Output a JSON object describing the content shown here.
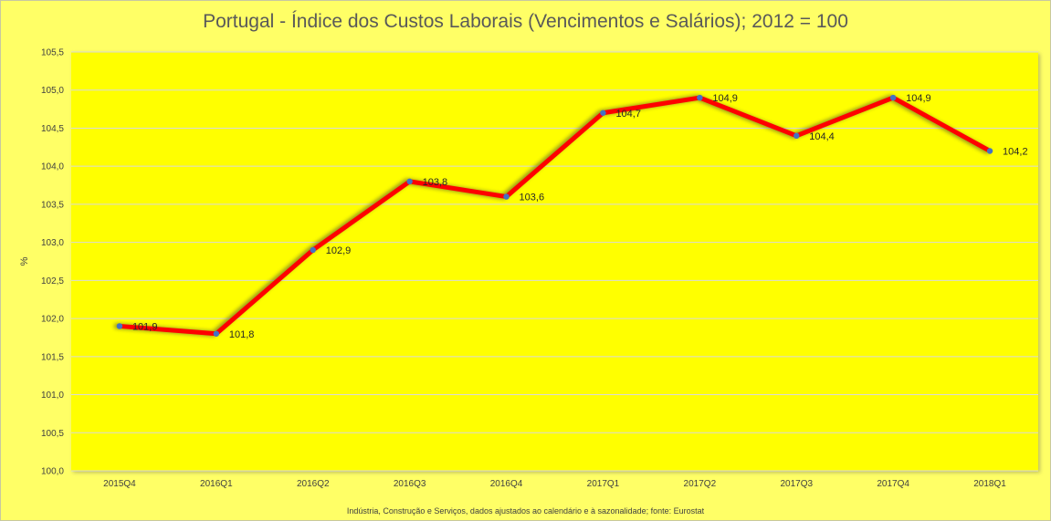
{
  "chart_data": {
    "type": "line",
    "title": "Portugal - Índice dos Custos Laborais (Vencimentos e Salários); 2012 = 100",
    "xlabel": "",
    "ylabel": "%",
    "categories": [
      "2015Q4",
      "2016Q1",
      "2016Q2",
      "2016Q3",
      "2016Q4",
      "2017Q1",
      "2017Q2",
      "2017Q3",
      "2017Q4",
      "2018Q1"
    ],
    "series": [
      {
        "values": [
          101.9,
          101.8,
          102.9,
          103.8,
          103.6,
          104.7,
          104.9,
          104.4,
          104.9,
          104.2
        ],
        "data_labels": [
          "101,9",
          "101,8",
          "102,9",
          "103,8",
          "103,6",
          "104,7",
          "104,9",
          "104,4",
          "104,9",
          "104,2"
        ],
        "line_color": "#ff0000",
        "marker_color": "#4472c4"
      }
    ],
    "ylim": [
      100.0,
      105.5
    ],
    "yticks": [
      "100,0",
      "100,5",
      "101,0",
      "101,5",
      "102,0",
      "102,5",
      "103,0",
      "103,5",
      "104,0",
      "104,5",
      "105,0",
      "105,5"
    ],
    "grid": true,
    "legend": "none",
    "plot_background": "#ffff00",
    "chart_background": "#ffff66",
    "footnote": "Indústria, Construção e Serviços, dados ajustados ao calendário e à sazonalidade;  fonte: Eurostat"
  }
}
